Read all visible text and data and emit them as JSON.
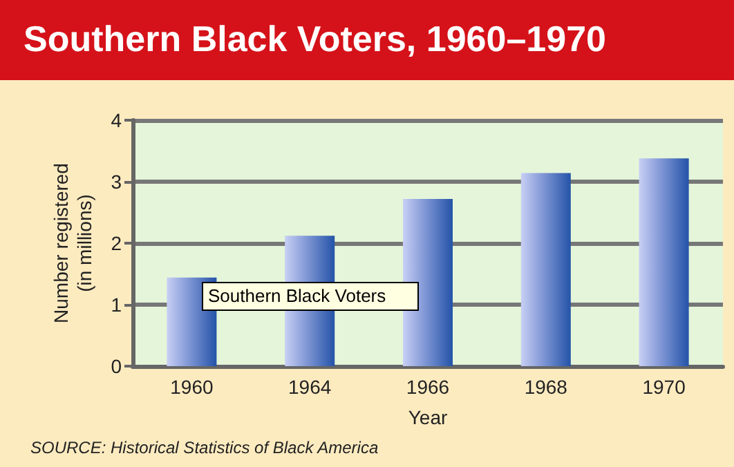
{
  "chart_data": {
    "type": "bar",
    "title": "Southern Black Voters, 1960–1970",
    "xlabel": "Year",
    "ylabel": "Number registered\n(in millions)",
    "categories": [
      "1960",
      "1964",
      "1966",
      "1968",
      "1970"
    ],
    "values": [
      1.44,
      2.12,
      2.72,
      3.14,
      3.38
    ],
    "color": "#2453a8",
    "ylim": [
      0,
      4
    ],
    "yticks": [
      0,
      1,
      2,
      3,
      4
    ],
    "grid": "y",
    "annotations": [
      "Southern Black Voters",
      "SOURCE: Historical Statistics of Black America"
    ]
  }
}
